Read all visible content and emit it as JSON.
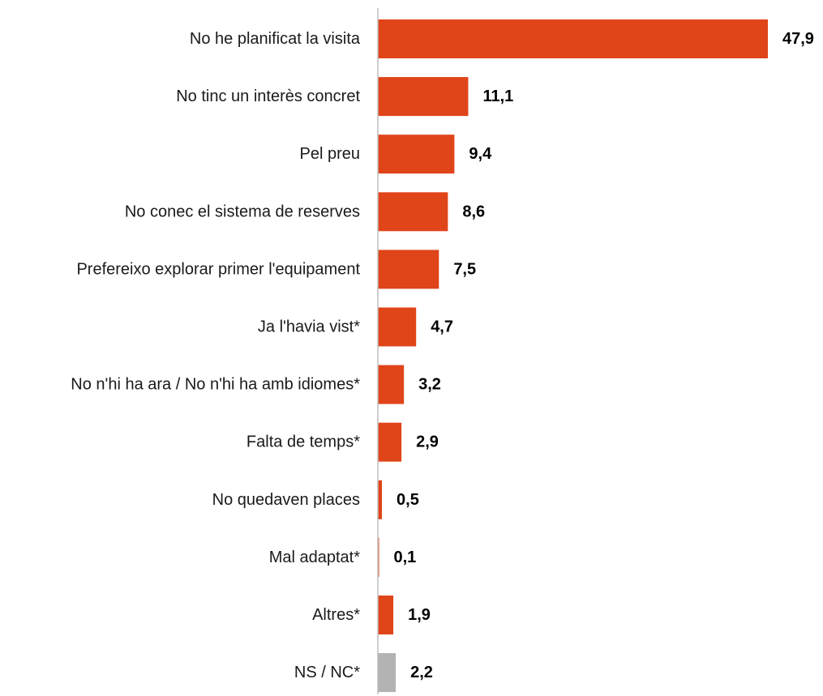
{
  "chart_data": {
    "type": "bar",
    "orientation": "horizontal",
    "categories": [
      "No he planificat la visita",
      "No tinc un interès concret",
      "Pel preu",
      "No conec el sistema de reserves",
      "Prefereixo explorar primer l'equipament",
      "Ja l'havia vist*",
      "No n'hi ha ara / No n'hi ha amb idiomes*",
      "Falta de temps*",
      "No quedaven places",
      "Mal adaptat*",
      "Altres*",
      "NS / NC*"
    ],
    "values": [
      47.9,
      11.1,
      9.4,
      8.6,
      7.5,
      4.7,
      3.2,
      2.9,
      0.5,
      0.1,
      1.9,
      2.2
    ],
    "value_labels": [
      "47,9",
      "11,1",
      "9,4",
      "8,6",
      "7,5",
      "4,7",
      "3,2",
      "2,9",
      "0,5",
      "0,1",
      "1,9",
      "2,2"
    ],
    "bar_colors": [
      "#e04419",
      "#e04419",
      "#e04419",
      "#e04419",
      "#e04419",
      "#e04419",
      "#e04419",
      "#e04419",
      "#e04419",
      "#e04419",
      "#e04419",
      "#b3b3b3"
    ],
    "xlim": [
      0,
      48
    ],
    "grid": false,
    "legend": "none",
    "axis_color": "#bfbfbf"
  }
}
